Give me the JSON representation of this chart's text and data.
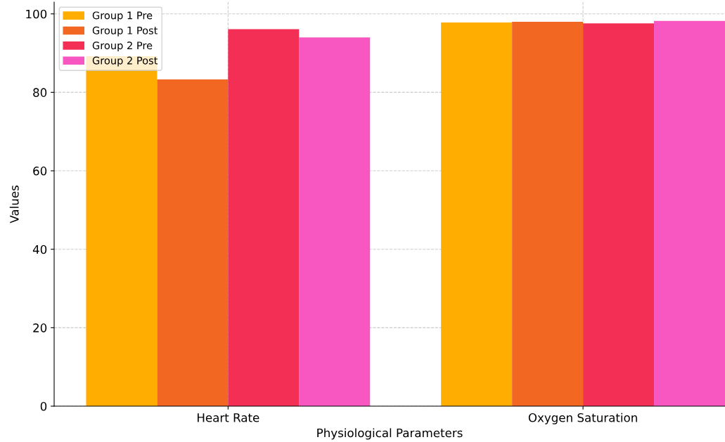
{
  "chart_data": {
    "type": "bar",
    "xlabel": "Physiological Parameters",
    "ylabel": "Values",
    "categories": [
      "Heart Rate",
      "Oxygen Saturation"
    ],
    "series": [
      {
        "name": "Group 1 Pre",
        "color": "#ffad00",
        "values": [
          89.2,
          97.8
        ]
      },
      {
        "name": "Group 1 Post",
        "color": "#f26822",
        "values": [
          83.3,
          98.0
        ]
      },
      {
        "name": "Group 2 Pre",
        "color": "#f42f55",
        "values": [
          96.1,
          97.6
        ]
      },
      {
        "name": "Group 2 Post",
        "color": "#f857c1",
        "values": [
          94.0,
          98.2
        ]
      }
    ],
    "ylim": [
      0,
      103
    ],
    "yticks": [
      0,
      20,
      40,
      60,
      80,
      100
    ],
    "grid": true,
    "legend": "top left"
  }
}
